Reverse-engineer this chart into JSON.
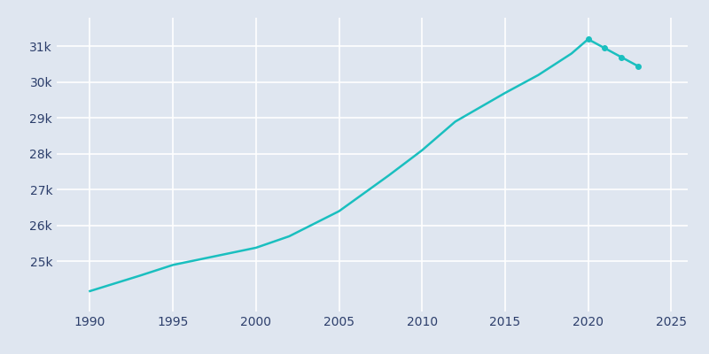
{
  "years": [
    1990,
    1993,
    1995,
    2000,
    2002,
    2005,
    2008,
    2010,
    2012,
    2015,
    2017,
    2019,
    2020,
    2021,
    2022,
    2023
  ],
  "population": [
    24170,
    24600,
    24900,
    25380,
    25700,
    26400,
    27400,
    28100,
    28900,
    29700,
    30200,
    30800,
    31200,
    30950,
    30700,
    30450
  ],
  "marker_years": [
    2020,
    2021,
    2022,
    2023
  ],
  "marker_pop": [
    31200,
    30950,
    30700,
    30450
  ],
  "line_color": "#1abfbf",
  "marker_color": "#1abfbf",
  "background_color": "#dfe6f0",
  "grid_color": "#ffffff",
  "text_color": "#2c3e6b",
  "xlim": [
    1988,
    2026
  ],
  "ylim": [
    23600,
    31800
  ],
  "xticks": [
    1990,
    1995,
    2000,
    2005,
    2010,
    2015,
    2020,
    2025
  ],
  "ytick_values": [
    25000,
    26000,
    27000,
    28000,
    29000,
    30000,
    31000
  ],
  "ytick_labels": [
    "25k",
    "26k",
    "27k",
    "28k",
    "29k",
    "30k",
    "31k"
  ]
}
